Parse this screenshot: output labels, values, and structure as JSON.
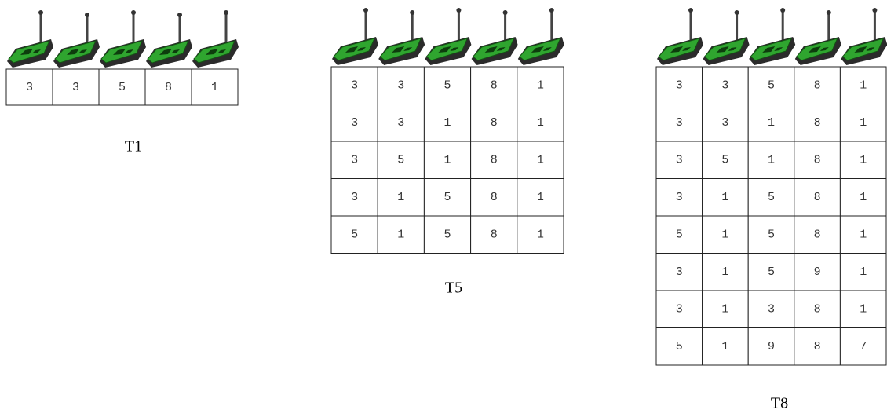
{
  "tables": [
    {
      "label": "T1",
      "rows": [
        [
          3,
          3,
          5,
          8,
          1
        ]
      ]
    },
    {
      "label": "T5",
      "rows": [
        [
          3,
          3,
          5,
          8,
          1
        ],
        [
          3,
          3,
          1,
          8,
          1
        ],
        [
          3,
          5,
          1,
          8,
          1
        ],
        [
          3,
          1,
          5,
          8,
          1
        ],
        [
          5,
          1,
          5,
          8,
          1
        ]
      ]
    },
    {
      "label": "T8",
      "rows": [
        [
          3,
          3,
          5,
          8,
          1
        ],
        [
          3,
          3,
          1,
          8,
          1
        ],
        [
          3,
          5,
          1,
          8,
          1
        ],
        [
          3,
          1,
          5,
          8,
          1
        ],
        [
          5,
          1,
          5,
          8,
          1
        ],
        [
          3,
          1,
          5,
          9,
          1
        ],
        [
          3,
          1,
          3,
          8,
          1
        ],
        [
          5,
          1,
          9,
          8,
          7
        ]
      ]
    }
  ]
}
